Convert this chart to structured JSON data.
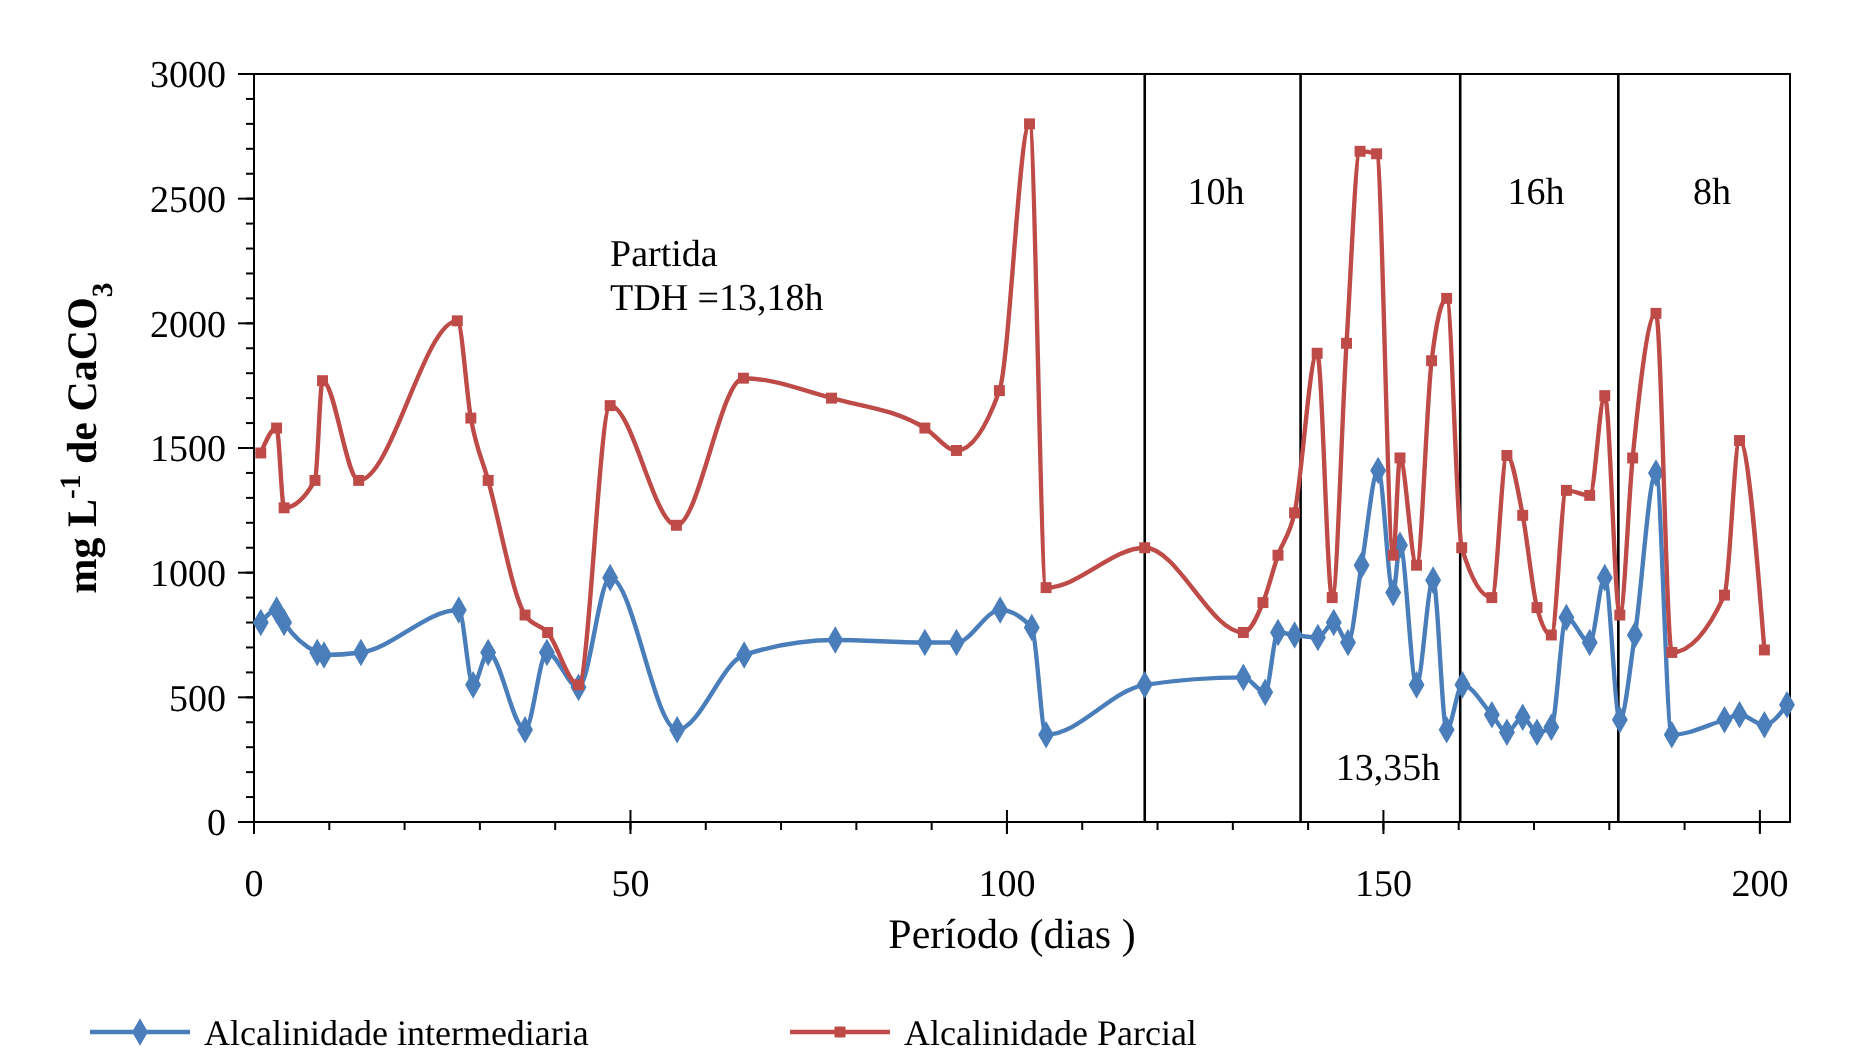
{
  "chart_data": {
    "type": "line",
    "xlabel": "Período (dias )",
    "ylabel": "mg L$^{-1}$ de CaCO$_{3}$",
    "xlim": [
      0,
      204
    ],
    "xticks": [
      0,
      50,
      100,
      150,
      200
    ],
    "ylim": [
      0,
      3000
    ],
    "yticks": [
      0,
      500,
      1000,
      1500,
      2000,
      2500,
      3000
    ],
    "grid": false,
    "legend": "bottom",
    "series": [
      {
        "name": "Alcalinidade intermediaria",
        "color": "#4a7ebb",
        "marker": "diamond",
        "x": [
          0.9,
          3,
          4,
          8.4,
          9.3,
          14.2,
          27.2,
          29.1,
          31.1,
          36,
          38.9,
          43.1,
          47.3,
          56.2,
          65.1,
          77.2,
          89.1,
          93.3,
          99.1,
          103.3,
          105.2,
          118.3,
          131.4,
          134.3,
          136,
          138.2,
          141.3,
          143.4,
          145.3,
          147.1,
          149.3,
          151.3,
          152.2,
          154.4,
          156.6,
          158.4,
          160.5,
          164.4,
          166.4,
          168.5,
          170.4,
          172.3,
          174.3,
          177.4,
          179.4,
          181.4,
          183.4,
          186.2,
          188.3,
          195.3,
          197.3,
          200.6,
          203.6
        ],
        "values": [
          800,
          850,
          800,
          680,
          670,
          680,
          850,
          550,
          680,
          370,
          680,
          540,
          980,
          370,
          670,
          730,
          720,
          720,
          850,
          780,
          350,
          550,
          580,
          520,
          760,
          750,
          740,
          800,
          720,
          1030,
          1410,
          920,
          1110,
          550,
          970,
          370,
          550,
          430,
          360,
          420,
          360,
          380,
          820,
          720,
          980,
          410,
          750,
          1400,
          350,
          410,
          430,
          390,
          470
        ]
      },
      {
        "name": "Alcalinidade Parcial",
        "color": "#be4b48",
        "marker": "square",
        "x": [
          0.9,
          3,
          4,
          8.1,
          9.1,
          13.9,
          27,
          28.8,
          31.1,
          36,
          39,
          43.1,
          47.3,
          56.1,
          65,
          76.7,
          89.1,
          93.3,
          99,
          103,
          105.2,
          118.3,
          131.4,
          134,
          136,
          138.2,
          141.2,
          143.2,
          145.1,
          146.9,
          149.1,
          151.3,
          152.2,
          154.4,
          156.4,
          158.4,
          160.4,
          164.4,
          166.4,
          168.5,
          170.4,
          172.3,
          174.3,
          177.4,
          179.4,
          181.4,
          183.1,
          186.2,
          188.3,
          195.3,
          197.3,
          200.6
        ],
        "values": [
          1480,
          1580,
          1260,
          1370,
          1770,
          1370,
          2010,
          1620,
          1370,
          830,
          760,
          550,
          1670,
          1190,
          1780,
          1700,
          1580,
          1490,
          1730,
          2800,
          940,
          1100,
          760,
          880,
          1070,
          1240,
          1880,
          900,
          1920,
          2690,
          2680,
          1070,
          1460,
          1030,
          1850,
          2100,
          1100,
          900,
          1470,
          1230,
          860,
          750,
          1330,
          1310,
          1710,
          830,
          1460,
          2040,
          680,
          910,
          1530,
          690
        ]
      }
    ],
    "ref_lines": [
      {
        "axis": "x",
        "value": 118.3,
        "color": "#000000"
      },
      {
        "axis": "x",
        "value": 139,
        "color": "#000000"
      },
      {
        "axis": "x",
        "value": 160.2,
        "color": "#000000"
      },
      {
        "axis": "x",
        "value": 181.2,
        "color": "#000000"
      }
    ],
    "annotations": [
      "Partida\nTDH =13,18h",
      "10h",
      "13,35h",
      "16h",
      "8h"
    ]
  }
}
